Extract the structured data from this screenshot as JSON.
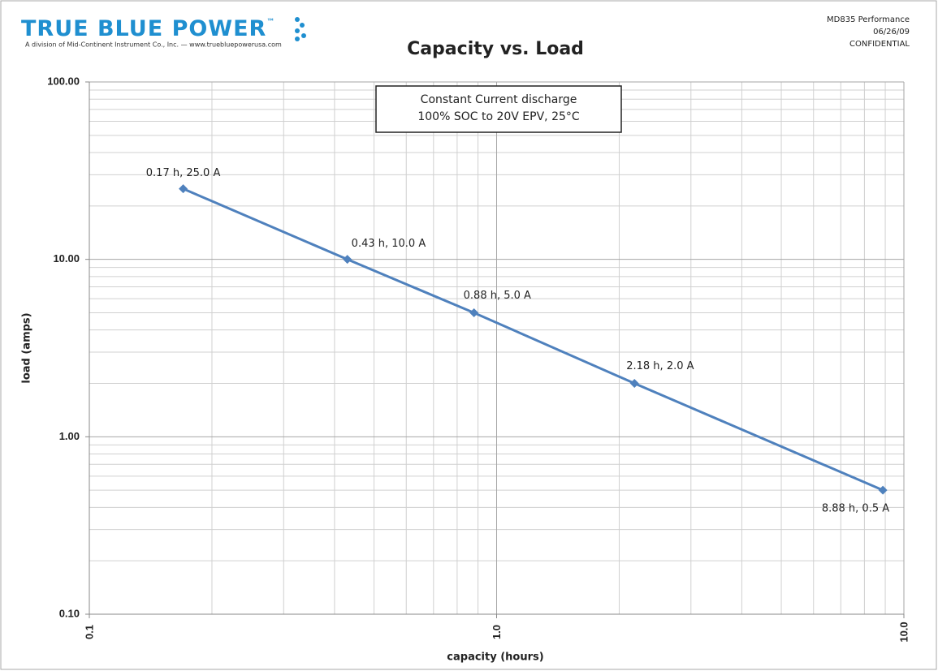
{
  "header": {
    "brand": "TRUE BLUE POWER",
    "trademark": "™",
    "tagline": "A division of Mid-Continent Instrument Co., Inc. — www.truebluepowerusa.com",
    "doc": "MD835 Performance",
    "date": "06/26/09",
    "status": "CONFIDENTIAL"
  },
  "chart_data": {
    "type": "line",
    "title": "Capacity vs. Load",
    "annotation": [
      "Constant Current discharge",
      "100% SOC to 20V EPV, 25°C"
    ],
    "xlabel": "capacity (hours)",
    "ylabel": "load (amps)",
    "x": [
      0.17,
      0.43,
      0.88,
      2.18,
      8.88
    ],
    "series": [
      {
        "color": "#4f81bd",
        "values": [
          25,
          10,
          5,
          2,
          0.5
        ],
        "value_labels": [
          "0.17 h, 25.0 A",
          "0.43 h, 10.0 A",
          "0.88 h, 5.0 A",
          "2.18 h, 2.0 A",
          "8.88 h, 0.5 A"
        ]
      }
    ],
    "xscale": "log",
    "yscale": "log",
    "xlim": [
      0.1,
      10
    ],
    "ylim": [
      0.1,
      100
    ],
    "xticks": [
      0.1,
      {
        "value": 1,
        "label": "1.0"
      },
      {
        "value": 10,
        "label": "10.0"
      }
    ],
    "yticks": [
      {
        "value": 0.1,
        "label": "0.10"
      },
      {
        "value": 1,
        "label": "1.00"
      },
      {
        "value": 10,
        "label": "10.00"
      },
      {
        "value": 100,
        "label": "100.00"
      }
    ],
    "xminorticks": [
      0.2,
      0.3,
      0.4,
      0.5,
      0.6,
      0.7,
      0.8,
      0.9,
      2,
      3,
      4,
      5,
      6,
      7,
      8,
      9
    ],
    "yminorticks": [
      0.2,
      0.3,
      0.4,
      0.5,
      0.6,
      0.7,
      0.8,
      0.9,
      2,
      3,
      4,
      5,
      6,
      7,
      8,
      9,
      20,
      30,
      40,
      50,
      60,
      70,
      80,
      90
    ],
    "grid": true
  }
}
